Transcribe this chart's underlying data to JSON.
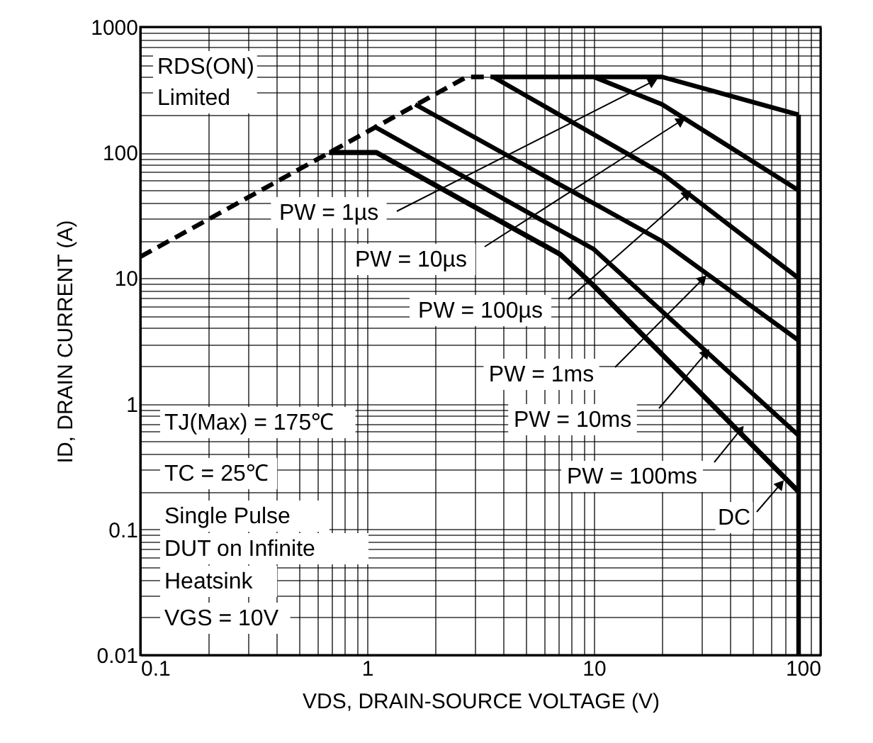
{
  "chart_data": {
    "type": "line",
    "xlabel": "VDS, DRAIN-SOURCE VOLTAGE (V)",
    "ylabel": "ID, DRAIN CURRENT (A)",
    "log": "xy",
    "grid": true,
    "xlim": [
      0.1,
      100
    ],
    "ylim": [
      0.01,
      1000
    ],
    "xticks": [
      0.1,
      {
        "value": 0.2,
        "label": null
      },
      {
        "value": 0.3,
        "label": null
      },
      {
        "value": 0.4,
        "label": null
      },
      {
        "value": 0.5,
        "label": null
      },
      {
        "value": 0.6,
        "label": null
      },
      {
        "value": 0.7,
        "label": null
      },
      {
        "value": 0.8,
        "label": null
      },
      {
        "value": 0.9,
        "label": null
      },
      1,
      {
        "value": 2,
        "label": null
      },
      {
        "value": 3,
        "label": null
      },
      {
        "value": 4,
        "label": null
      },
      {
        "value": 5,
        "label": null
      },
      {
        "value": 6,
        "label": null
      },
      {
        "value": 7,
        "label": null
      },
      {
        "value": 8,
        "label": null
      },
      {
        "value": 9,
        "label": null
      },
      10,
      {
        "value": 20,
        "label": null
      },
      {
        "value": 30,
        "label": null
      },
      {
        "value": 40,
        "label": null
      },
      {
        "value": 50,
        "label": null
      },
      {
        "value": 60,
        "label": null
      },
      {
        "value": 70,
        "label": null
      },
      {
        "value": 80,
        "label": null
      },
      {
        "value": 90,
        "label": null
      },
      100
    ],
    "yticks": [
      0.01,
      {
        "value": 0.02,
        "label": null
      },
      {
        "value": 0.03,
        "label": null
      },
      {
        "value": 0.04,
        "label": null
      },
      {
        "value": 0.05,
        "label": null
      },
      {
        "value": 0.06,
        "label": null
      },
      {
        "value": 0.07,
        "label": null
      },
      {
        "value": 0.08,
        "label": null
      },
      {
        "value": 0.09,
        "label": null
      },
      0.1,
      {
        "value": 0.2,
        "label": null
      },
      {
        "value": 0.3,
        "label": null
      },
      {
        "value": 0.4,
        "label": null
      },
      {
        "value": 0.5,
        "label": null
      },
      {
        "value": 0.6,
        "label": null
      },
      {
        "value": 0.7,
        "label": null
      },
      {
        "value": 0.8,
        "label": null
      },
      {
        "value": 0.9,
        "label": null
      },
      1,
      {
        "value": 2,
        "label": null
      },
      {
        "value": 3,
        "label": null
      },
      {
        "value": 4,
        "label": null
      },
      {
        "value": 5,
        "label": null
      },
      {
        "value": 6,
        "label": null
      },
      {
        "value": 7,
        "label": null
      },
      {
        "value": 8,
        "label": null
      },
      {
        "value": 9,
        "label": null
      },
      10,
      {
        "value": 20,
        "label": null
      },
      {
        "value": 30,
        "label": null
      },
      {
        "value": 40,
        "label": null
      },
      {
        "value": 50,
        "label": null
      },
      {
        "value": 60,
        "label": null
      },
      {
        "value": 70,
        "label": null
      },
      {
        "value": 80,
        "label": null
      },
      {
        "value": 90,
        "label": null
      },
      100,
      {
        "value": 200,
        "label": null
      },
      {
        "value": 300,
        "label": null
      },
      {
        "value": 400,
        "label": null
      },
      {
        "value": 500,
        "label": null
      },
      {
        "value": 600,
        "label": null
      },
      {
        "value": 700,
        "label": null
      },
      {
        "value": 800,
        "label": null
      },
      {
        "value": 900,
        "label": null
      },
      1000
    ],
    "series": [
      {
        "color": "#000000",
        "line_style": "dashed",
        "x": [
          0.1,
          2.75,
          3.5
        ],
        "values": [
          14.8,
          400,
          400
        ]
      },
      {
        "color": "#000000",
        "x": [
          3.5,
          20,
          80
        ],
        "values": [
          400,
          400,
          200
        ]
      },
      {
        "color": "#000000",
        "x": [
          10,
          20,
          80
        ],
        "values": [
          400,
          242,
          50
        ]
      },
      {
        "color": "#000000",
        "x": [
          3.6,
          20,
          80
        ],
        "values": [
          400,
          68,
          10
        ]
      },
      {
        "color": "#000000",
        "x": [
          1.63,
          20,
          80
        ],
        "values": [
          242,
          19.7,
          3.2
        ]
      },
      {
        "color": "#000000",
        "x": [
          1.07,
          10,
          80
        ],
        "values": [
          162,
          17,
          0.56
        ]
      },
      {
        "color": "#000000",
        "x": [
          0.68,
          1.1,
          7.1,
          10,
          80
        ],
        "values": [
          100,
          100,
          15.5,
          8.7,
          0.2
        ]
      },
      {
        "color": "#000000",
        "x": [
          80,
          80
        ],
        "values": [
          200,
          0.01
        ]
      }
    ],
    "annotations": [
      {
        "text": "PW = 1µs",
        "x": 18,
        "y": 365
      },
      {
        "text": "PW = 10µs",
        "x": 24,
        "y": 177
      },
      {
        "text": "PW = 100µs",
        "x": 25.6,
        "y": 46
      },
      {
        "text": "PW = 1ms",
        "x": 30,
        "y": 9.7
      },
      {
        "text": "PW = 10ms",
        "x": 31,
        "y": 2.5
      },
      {
        "text": "PW = 100ms",
        "x": 44,
        "y": 0.61
      },
      {
        "text": "DC",
        "x": 66,
        "y": 0.225
      },
      "RDS(ON)",
      "Limited",
      "TJ(Max) = 175℃",
      "TC = 25℃",
      "Single Pulse",
      "DUT on Infinite",
      "Heatsink",
      "VGS = 10V"
    ]
  }
}
